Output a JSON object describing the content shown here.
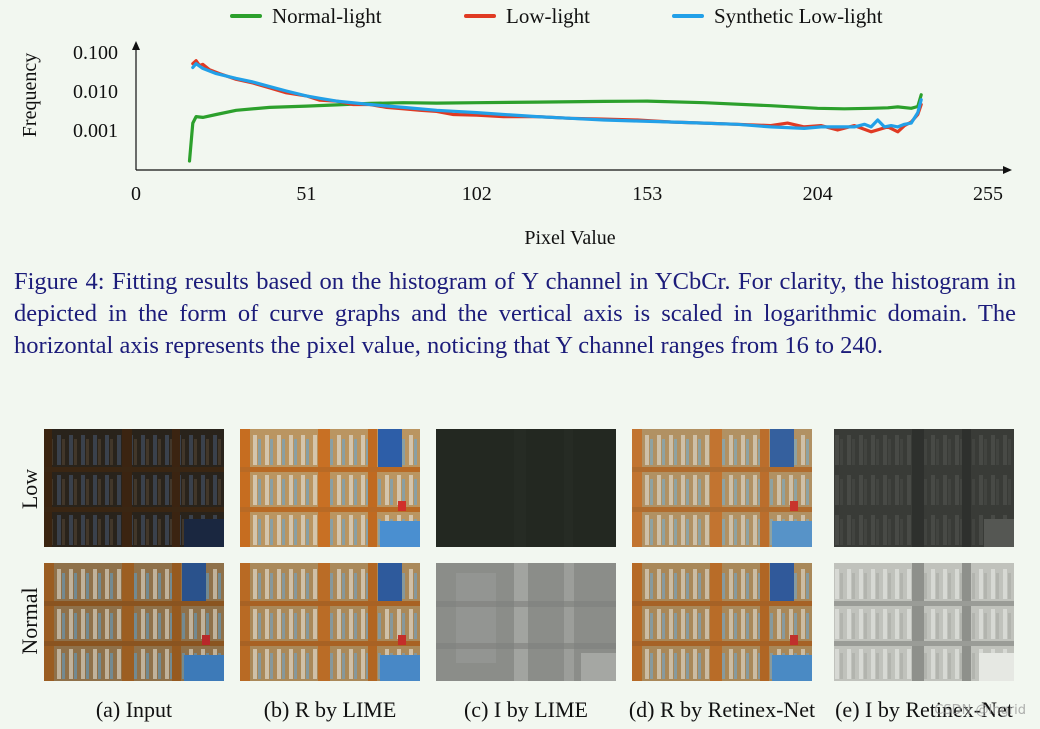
{
  "chart_data": {
    "type": "line",
    "xlabel": "Pixel Value",
    "ylabel": "Frequency",
    "x_ticks": [
      0,
      51,
      102,
      153,
      204,
      255
    ],
    "y_ticks": [
      0.1,
      0.01,
      0.001
    ],
    "y_tick_labels": [
      "0.100",
      "0.010",
      "0.001"
    ],
    "y_scale": "log",
    "xlim": [
      0,
      255
    ],
    "ylim": [
      0.0001,
      0.15
    ],
    "legend_position": "top",
    "series": [
      {
        "name": "Normal-light",
        "color": "#2ca02c",
        "x": [
          16,
          17,
          18,
          20,
          24,
          30,
          40,
          51,
          60,
          70,
          80,
          90,
          102,
          120,
          140,
          153,
          170,
          190,
          204,
          212,
          220,
          225,
          228,
          232,
          234,
          235
        ],
        "y": [
          0.00016,
          0.0015,
          0.0022,
          0.0021,
          0.0025,
          0.0032,
          0.0038,
          0.0041,
          0.0044,
          0.0048,
          0.005,
          0.0049,
          0.005,
          0.0052,
          0.0054,
          0.0055,
          0.005,
          0.0042,
          0.0036,
          0.0035,
          0.0036,
          0.0037,
          0.0039,
          0.0036,
          0.004,
          0.008
        ]
      },
      {
        "name": "Low-light",
        "color": "#e03a23",
        "x": [
          17,
          18,
          19,
          20,
          22,
          25,
          30,
          35,
          40,
          45,
          51,
          55,
          60,
          65,
          70,
          75,
          80,
          85,
          90,
          95,
          102,
          110,
          120,
          130,
          140,
          150,
          160,
          170,
          180,
          190,
          195,
          200,
          205,
          210,
          215,
          220,
          225,
          228,
          230,
          232,
          234,
          235
        ],
        "y": [
          0.05,
          0.06,
          0.045,
          0.048,
          0.035,
          0.028,
          0.02,
          0.016,
          0.012,
          0.009,
          0.0075,
          0.0058,
          0.0055,
          0.0045,
          0.0045,
          0.0038,
          0.0035,
          0.0032,
          0.003,
          0.0025,
          0.0024,
          0.0022,
          0.0022,
          0.002,
          0.0019,
          0.0018,
          0.0016,
          0.0015,
          0.0014,
          0.0013,
          0.0015,
          0.0012,
          0.0013,
          0.001,
          0.0013,
          0.0009,
          0.0012,
          0.0009,
          0.0013,
          0.0016,
          0.0025,
          0.0045
        ]
      },
      {
        "name": "Synthetic Low-light",
        "color": "#22a0e8",
        "x": [
          17,
          18,
          20,
          24,
          30,
          35,
          40,
          45,
          51,
          55,
          60,
          70,
          80,
          90,
          102,
          110,
          120,
          130,
          140,
          150,
          160,
          170,
          180,
          190,
          200,
          205,
          210,
          215,
          218,
          220,
          222,
          224,
          226,
          228,
          230,
          232,
          234,
          235
        ],
        "y": [
          0.04,
          0.05,
          0.038,
          0.028,
          0.021,
          0.017,
          0.013,
          0.01,
          0.0075,
          0.0065,
          0.0055,
          0.0045,
          0.0038,
          0.0032,
          0.0028,
          0.0025,
          0.0022,
          0.002,
          0.0018,
          0.0017,
          0.0016,
          0.0015,
          0.0014,
          0.0012,
          0.0011,
          0.0012,
          0.0012,
          0.0012,
          0.0014,
          0.0012,
          0.0018,
          0.0012,
          0.0013,
          0.0012,
          0.0014,
          0.0015,
          0.0028,
          0.006
        ]
      }
    ]
  },
  "caption": "Figure 4: Fitting results based on the histogram of Y channel in YCbCr. For clarity, the histogram in depicted in the form of curve graphs and the vertical axis is scaled in logarithmic domain. The horizontal axis represents the pixel value, noticing that Y channel ranges from 16 to 240.",
  "figure_grid": {
    "row_labels": [
      "Low",
      "Normal"
    ],
    "column_labels": [
      "(a) Input",
      "(b) R by LIME",
      "(c) I by LIME",
      "(d) R by Retinex-Net",
      "(e) I by Retinex-Net"
    ]
  },
  "watermark": "CSDN @Ingrid"
}
